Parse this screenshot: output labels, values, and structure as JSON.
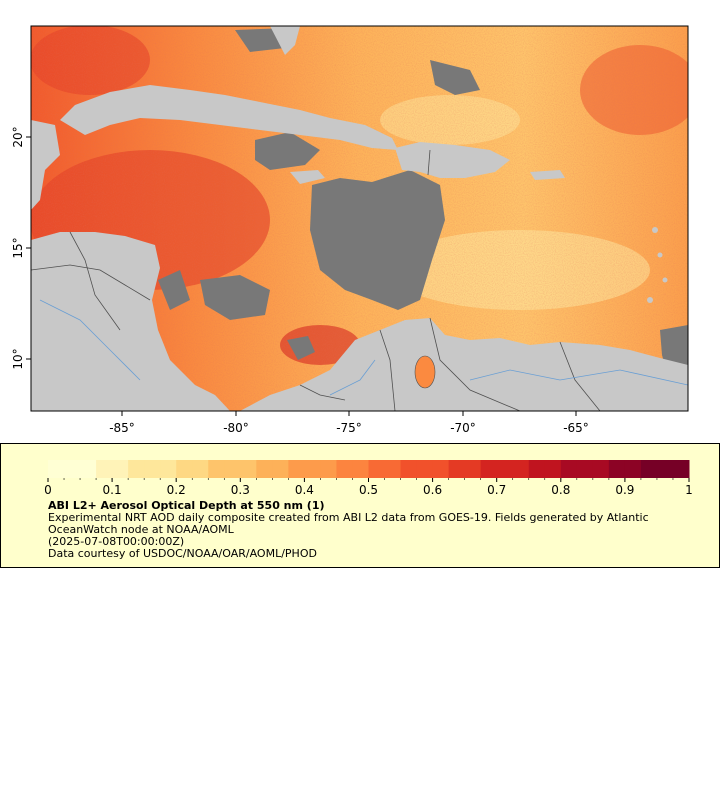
{
  "map": {
    "x_ticks": [
      "-85°",
      "-80°",
      "-75°",
      "-70°",
      "-65°"
    ],
    "y_ticks": [
      "20°",
      "15°",
      "10°"
    ],
    "colors": {
      "land": "#c8c8c8",
      "no_data": "#787878",
      "borders": "#505050",
      "rivers": "#6a9fd4",
      "frame": "#000000"
    }
  },
  "legend": {
    "colorbar_ticks": [
      "0",
      "0.1",
      "0.2",
      "0.3",
      "0.4",
      "0.5",
      "0.6",
      "0.7",
      "0.8",
      "0.9",
      "1"
    ],
    "colorbar_colors": [
      "#ffffd4",
      "#fff3b8",
      "#fee79b",
      "#fed883",
      "#fec46b",
      "#fdb159",
      "#fd9b4b",
      "#fc843f",
      "#f86a34",
      "#f1512b",
      "#e43a24",
      "#d42420",
      "#c0141f",
      "#a80a23",
      "#8c0325",
      "#760026"
    ],
    "title": "ABI L2+ Aerosol Optical Depth at 550 nm (1)",
    "description": "Experimental NRT AOD daily composite created from ABI L2 data from GOES-19. Fields generated by Atlantic OceanWatch node at NOAA/AOML",
    "date": "(2025-07-08T00:00:00Z)",
    "credit": "Data courtesy of USDOC/NOAA/OAR/AOML/PHOD"
  }
}
